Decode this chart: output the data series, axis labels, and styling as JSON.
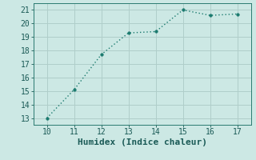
{
  "x": [
    10,
    11,
    12,
    13,
    14,
    15,
    16,
    17
  ],
  "y": [
    13.0,
    15.1,
    17.7,
    19.3,
    19.4,
    21.0,
    20.6,
    20.7
  ],
  "xlabel": "Humidex (Indice chaleur)",
  "xlim": [
    9.5,
    17.5
  ],
  "ylim": [
    12.5,
    21.5
  ],
  "xticks": [
    10,
    11,
    12,
    13,
    14,
    15,
    16,
    17
  ],
  "yticks": [
    13,
    14,
    15,
    16,
    17,
    18,
    19,
    20,
    21
  ],
  "line_color": "#1a7a6e",
  "marker_color": "#1a7a6e",
  "bg_color": "#cce8e4",
  "grid_color": "#b0ceca",
  "axis_color": "#2a7a70",
  "tick_color": "#1a5a56",
  "xlabel_color": "#1a5a56",
  "line_width": 1.0,
  "marker_size": 2.5,
  "font_size": 7
}
